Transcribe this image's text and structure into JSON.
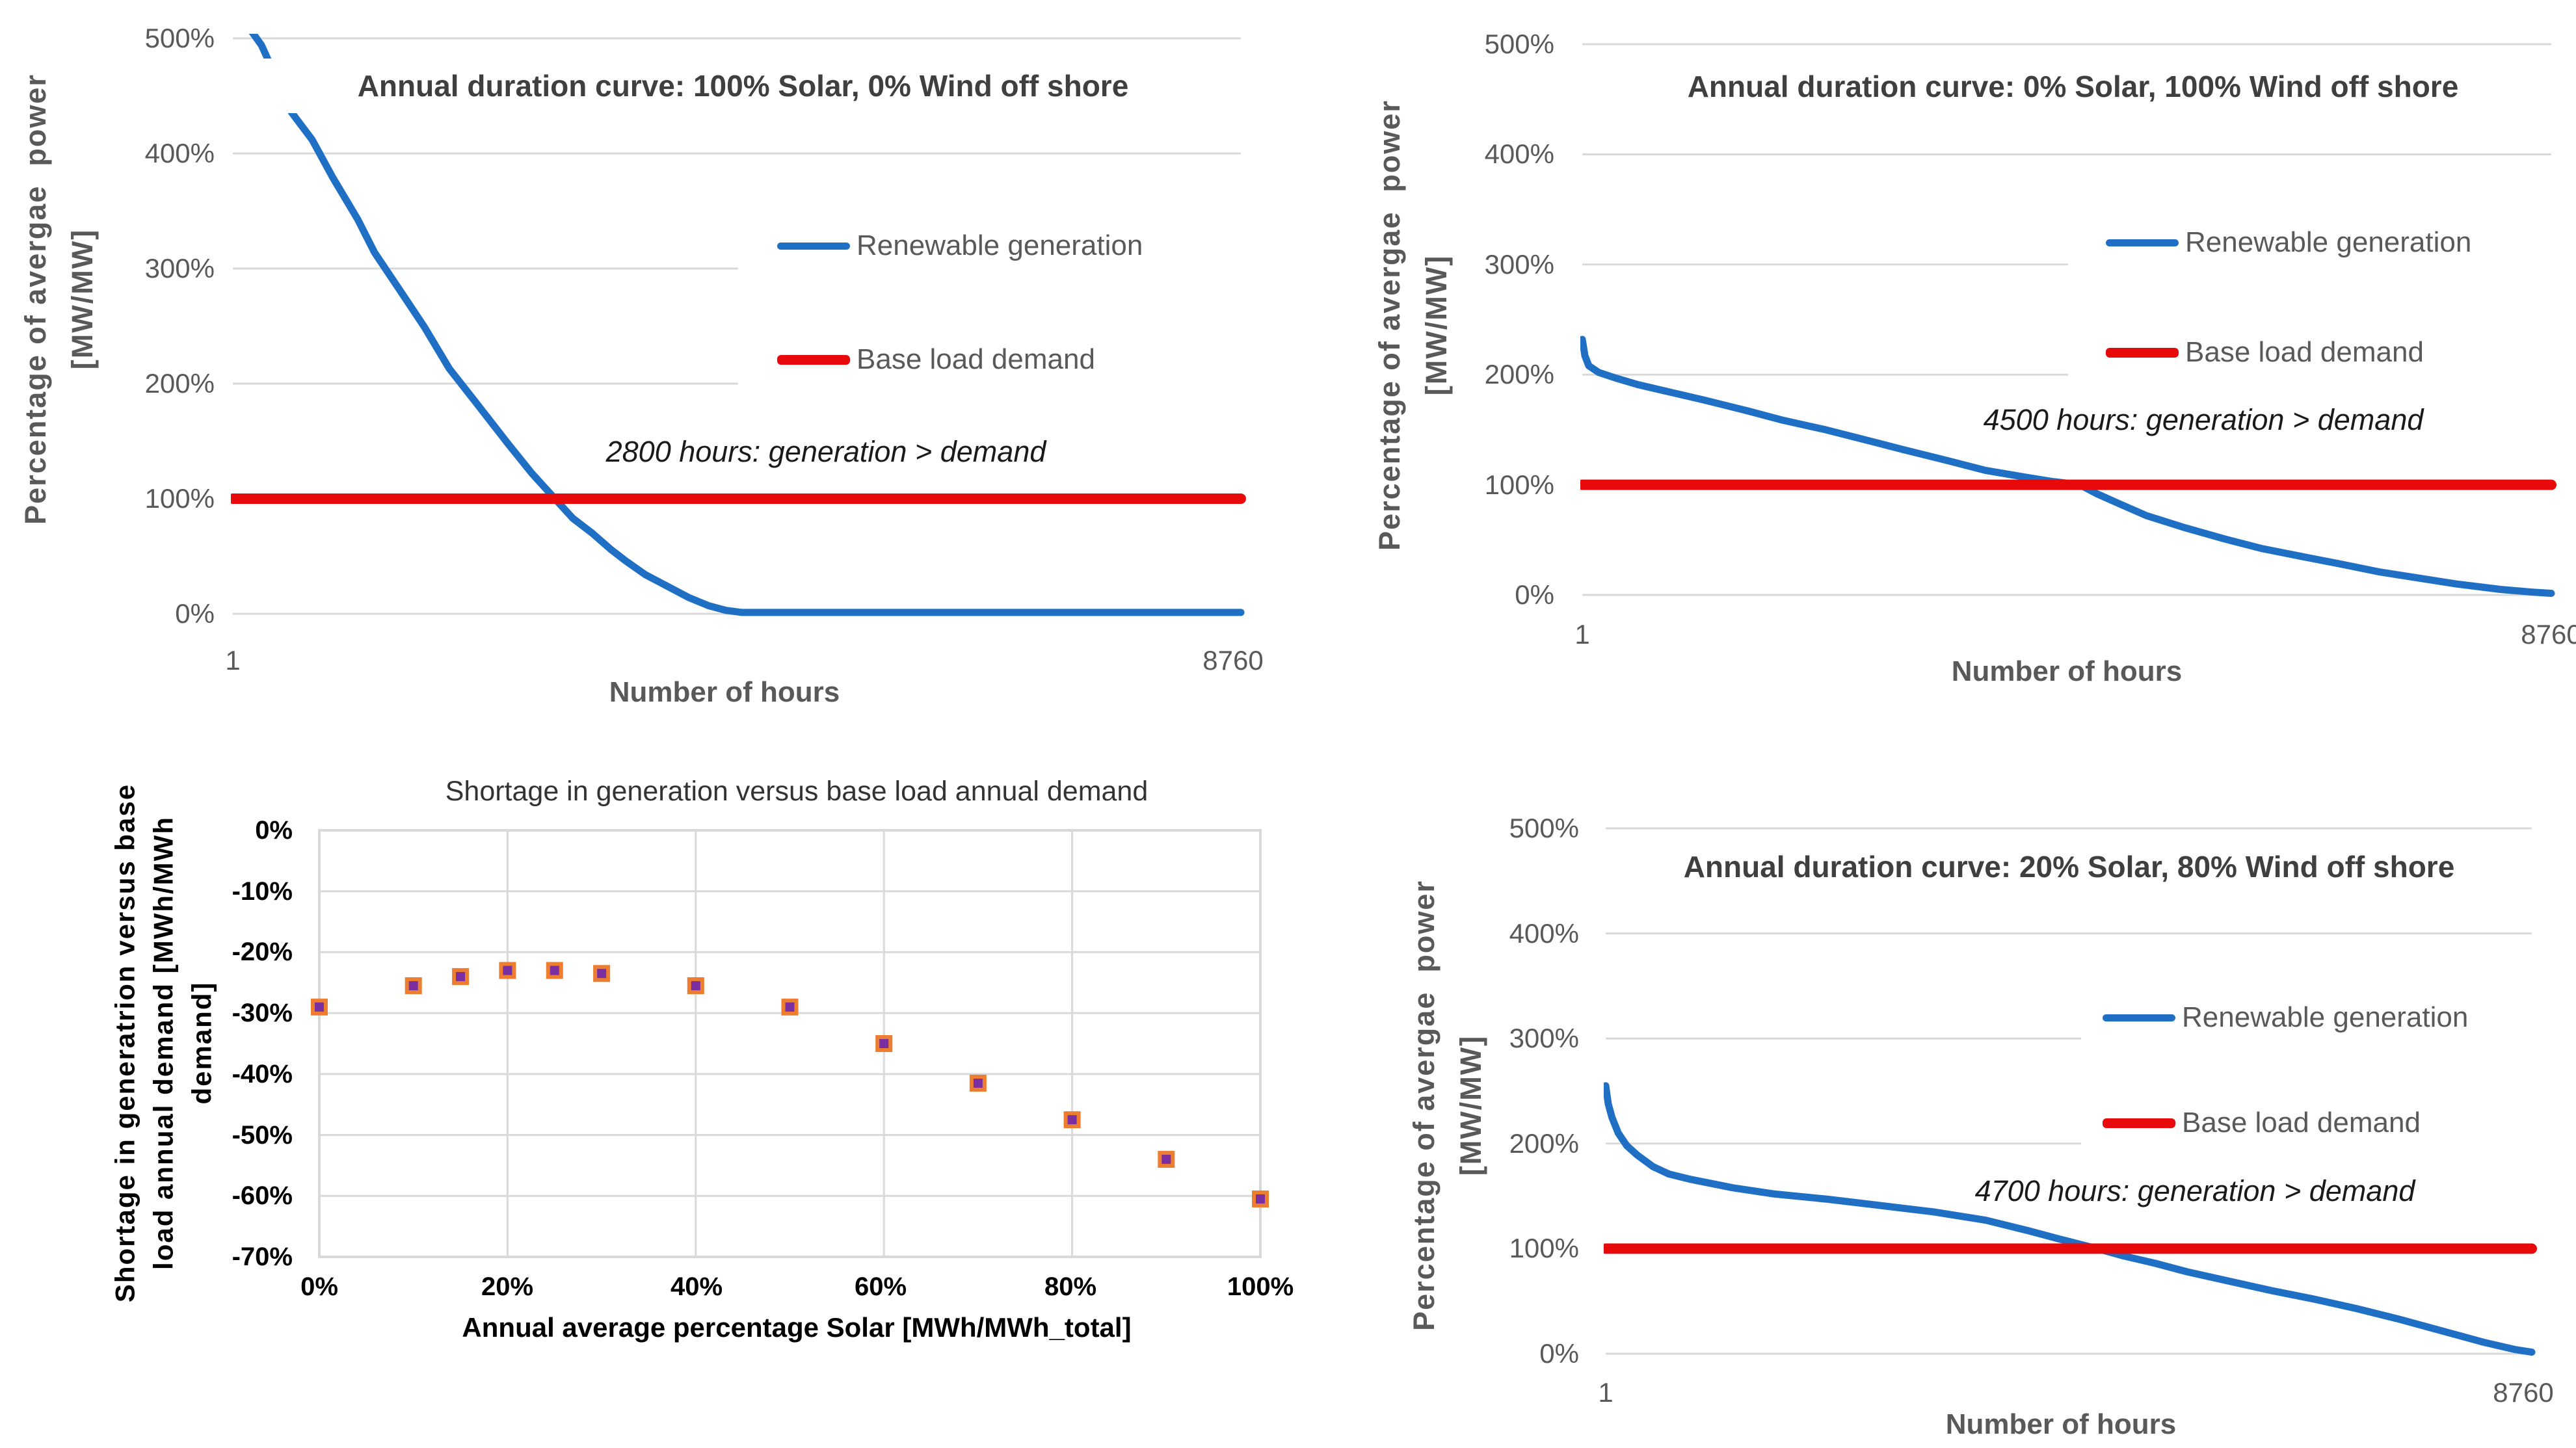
{
  "colors": {
    "renewable_blue": "#1F6FC4",
    "demand_red": "#E8090B",
    "marker_purple": "#7A2EA0",
    "marker_orange_border": "#ED7D31",
    "gridline_gray": "#D9D9D9",
    "axis_text_gray": "#595959"
  },
  "chart_data": [
    {
      "id": "solar-100",
      "type": "line",
      "title": "Annual duration curve: 100% Solar, 0% Wind off shore",
      "xlabel": "Number of hours",
      "ylabel_lines": [
        "Percentage of avergae  power",
        "[MW/MW]"
      ],
      "x_ticks": [
        "1",
        "8760"
      ],
      "y_ticks": [
        "500%",
        "400%",
        "300%",
        "200%",
        "100%",
        "0%"
      ],
      "xlim": [
        1,
        8760
      ],
      "ylim": [
        0,
        500
      ],
      "grid": true,
      "legend_position": "right-center",
      "annotation": "2800 hours: generation > demand",
      "legend": [
        {
          "label": "Renewable generation"
        },
        {
          "label": "Base load demand"
        }
      ],
      "series": [
        {
          "name": "Renewable generation",
          "color": "#1F6FC4",
          "points": [
            [
              1,
              555
            ],
            [
              60,
              530
            ],
            [
              150,
              508
            ],
            [
              250,
              494
            ],
            [
              350,
              472
            ],
            [
              509,
              436
            ],
            [
              690,
              412
            ],
            [
              870,
              379
            ],
            [
              1085,
              343
            ],
            [
              1232,
              314
            ],
            [
              1447,
              282
            ],
            [
              1667,
              249
            ],
            [
              1882,
              213
            ],
            [
              2102,
              185
            ],
            [
              2390,
              148
            ],
            [
              2600,
              122
            ],
            [
              2800,
              100
            ],
            [
              2955,
              83
            ],
            [
              3125,
              70
            ],
            [
              3285,
              56
            ],
            [
              3415,
              46
            ],
            [
              3585,
              34
            ],
            [
              3775,
              24
            ],
            [
              3965,
              14
            ],
            [
              4135,
              7
            ],
            [
              4285,
              3
            ],
            [
              4425,
              1.2
            ],
            [
              8760,
              1.2
            ]
          ]
        },
        {
          "name": "Base load demand",
          "color": "#E8090B",
          "points": [
            [
              1,
              100
            ],
            [
              8760,
              100
            ]
          ]
        }
      ]
    },
    {
      "id": "wind-100",
      "type": "line",
      "title": "Annual duration curve: 0% Solar, 100% Wind off shore",
      "xlabel": "Number of hours",
      "ylabel_lines": [
        "Percentage of avergae  power",
        "[MW/MW]"
      ],
      "x_ticks": [
        "1",
        "8760"
      ],
      "y_ticks": [
        "500%",
        "400%",
        "300%",
        "200%",
        "100%",
        "0%"
      ],
      "xlim": [
        1,
        8760
      ],
      "ylim": [
        0,
        500
      ],
      "grid": true,
      "legend_position": "right-center",
      "annotation": "4500 hours: generation > demand",
      "legend": [
        {
          "label": "Renewable generation"
        },
        {
          "label": "Base load demand"
        }
      ],
      "series": [
        {
          "name": "Renewable generation",
          "color": "#1F6FC4",
          "points": [
            [
              1,
              232
            ],
            [
              25,
              217
            ],
            [
              60,
              208
            ],
            [
              150,
              202
            ],
            [
              300,
              197
            ],
            [
              500,
              191
            ],
            [
              800,
              184
            ],
            [
              1100,
              177
            ],
            [
              1500,
              167
            ],
            [
              1800,
              159
            ],
            [
              2200,
              150
            ],
            [
              2550,
              141
            ],
            [
              2900,
              132
            ],
            [
              3300,
              122
            ],
            [
              3650,
              113
            ],
            [
              4000,
              107
            ],
            [
              4250,
              103
            ],
            [
              4500,
              100
            ],
            [
              4650,
              92
            ],
            [
              4850,
              83
            ],
            [
              5100,
              72
            ],
            [
              5450,
              61
            ],
            [
              5800,
              51
            ],
            [
              6150,
              42
            ],
            [
              6500,
              35
            ],
            [
              6860,
              28
            ],
            [
              7200,
              21
            ],
            [
              7580,
              15
            ],
            [
              7900,
              10
            ],
            [
              8300,
              5
            ],
            [
              8600,
              2.5
            ],
            [
              8760,
              1.5
            ]
          ]
        },
        {
          "name": "Base load demand",
          "color": "#E8090B",
          "points": [
            [
              1,
              100
            ],
            [
              8760,
              100
            ]
          ]
        }
      ]
    },
    {
      "id": "shortage-scatter",
      "type": "scatter",
      "title": "Shortage in generation versus base load annual demand",
      "xlabel": "Annual average percentage Solar [MWh/MWh_total]",
      "ylabel_lines": [
        "Shortage in generatrion versus base",
        "load annual demand [MWh/MWh",
        "demand]"
      ],
      "x_ticks": [
        "0%",
        "20%",
        "40%",
        "60%",
        "80%",
        "100%"
      ],
      "y_ticks": [
        "0%",
        "-10%",
        "-20%",
        "-30%",
        "-40%",
        "-50%",
        "-60%",
        "-70%"
      ],
      "xlim": [
        0,
        100
      ],
      "ylim": [
        -70,
        0
      ],
      "grid": true,
      "marker": {
        "fill": "#7A2EA0",
        "border": "#ED7D31"
      },
      "x": [
        0,
        10,
        15,
        20,
        25,
        30,
        40,
        50,
        60,
        70,
        80,
        90,
        100
      ],
      "y": [
        -29,
        -25.5,
        -24,
        -23,
        -23,
        -23.5,
        -25.5,
        -29,
        -35,
        -41.5,
        -47.5,
        -54,
        -60.5
      ]
    },
    {
      "id": "solar20-wind80",
      "type": "line",
      "title": "Annual duration curve: 20% Solar, 80% Wind off shore",
      "xlabel": "Number of hours",
      "ylabel_lines": [
        "Percentage of avergae  power",
        "[MW/MW]"
      ],
      "x_ticks": [
        "1",
        "8760"
      ],
      "y_ticks": [
        "500%",
        "400%",
        "300%",
        "200%",
        "100%",
        "0%"
      ],
      "xlim": [
        1,
        8760
      ],
      "ylim": [
        0,
        500
      ],
      "grid": true,
      "legend_position": "right-center",
      "annotation": "4700 hours: generation > demand",
      "legend": [
        {
          "label": "Renewable generation"
        },
        {
          "label": "Base load demand"
        }
      ],
      "series": [
        {
          "name": "Renewable generation",
          "color": "#1F6FC4",
          "points": [
            [
              1,
              255
            ],
            [
              25,
              238
            ],
            [
              60,
              225
            ],
            [
              120,
              210
            ],
            [
              200,
              198
            ],
            [
              300,
              189
            ],
            [
              450,
              178
            ],
            [
              600,
              171
            ],
            [
              800,
              166
            ],
            [
              1000,
              162
            ],
            [
              1200,
              158
            ],
            [
              1600,
              152
            ],
            [
              2100,
              147
            ],
            [
              2600,
              141
            ],
            [
              3100,
              135
            ],
            [
              3600,
              127
            ],
            [
              4000,
              117
            ],
            [
              4300,
              109
            ],
            [
              4650,
              100
            ],
            [
              4900,
              93
            ],
            [
              5200,
              86
            ],
            [
              5500,
              78
            ],
            [
              5900,
              69
            ],
            [
              6300,
              60
            ],
            [
              6700,
              52
            ],
            [
              7100,
              43
            ],
            [
              7500,
              33
            ],
            [
              7900,
              22
            ],
            [
              8300,
              11
            ],
            [
              8600,
              4
            ],
            [
              8760,
              1.5
            ]
          ]
        },
        {
          "name": "Base load demand",
          "color": "#E8090B",
          "points": [
            [
              1,
              100
            ],
            [
              8760,
              100
            ]
          ]
        }
      ]
    }
  ]
}
